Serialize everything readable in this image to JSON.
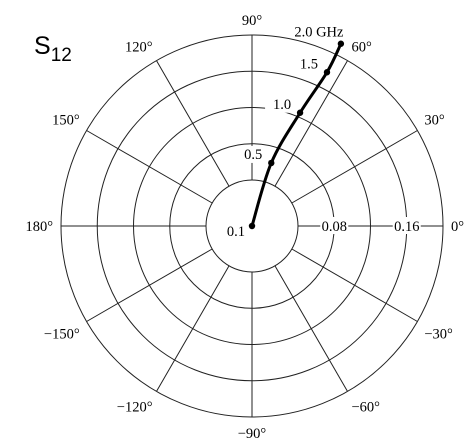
{
  "chart_data": {
    "type": "polar-line",
    "title": "S",
    "title_subscript": "12",
    "angle_ticks": [
      {
        "deg": 90,
        "label": "90°"
      },
      {
        "deg": 60,
        "label": "60°"
      },
      {
        "deg": 30,
        "label": "30°"
      },
      {
        "deg": 0,
        "label": "0°"
      },
      {
        "deg": -30,
        "label": "−30°"
      },
      {
        "deg": -60,
        "label": "−60°"
      },
      {
        "deg": -90,
        "label": "−90°"
      },
      {
        "deg": -120,
        "label": "−120°"
      },
      {
        "deg": -150,
        "label": "−150°"
      },
      {
        "deg": 180,
        "label": "180°"
      },
      {
        "deg": 150,
        "label": "150°"
      },
      {
        "deg": 120,
        "label": "120°"
      }
    ],
    "radial_ticks": [
      {
        "value": 0.04,
        "label": ""
      },
      {
        "value": 0.08,
        "label": "0.08"
      },
      {
        "value": 0.12,
        "label": ""
      },
      {
        "value": 0.16,
        "label": "0.16"
      },
      {
        "value": 0.2,
        "label": ""
      }
    ],
    "rlim": [
      0,
      0.2
    ],
    "grid": true,
    "series": [
      {
        "points": [
          {
            "freq": 0.1,
            "mag": 0.0,
            "angle_deg": 90,
            "label": "0.1"
          },
          {
            "freq": 0.5,
            "mag": 0.062,
            "angle_deg": 73,
            "label": "0.5"
          },
          {
            "freq": 1.0,
            "mag": 0.125,
            "angle_deg": 67,
            "label": "1.0"
          },
          {
            "freq": 1.5,
            "mag": 0.178,
            "angle_deg": 64,
            "label": "1.5"
          },
          {
            "freq": 2.0,
            "mag": 0.213,
            "angle_deg": 64,
            "label": "2.0 GHz"
          }
        ]
      }
    ]
  }
}
